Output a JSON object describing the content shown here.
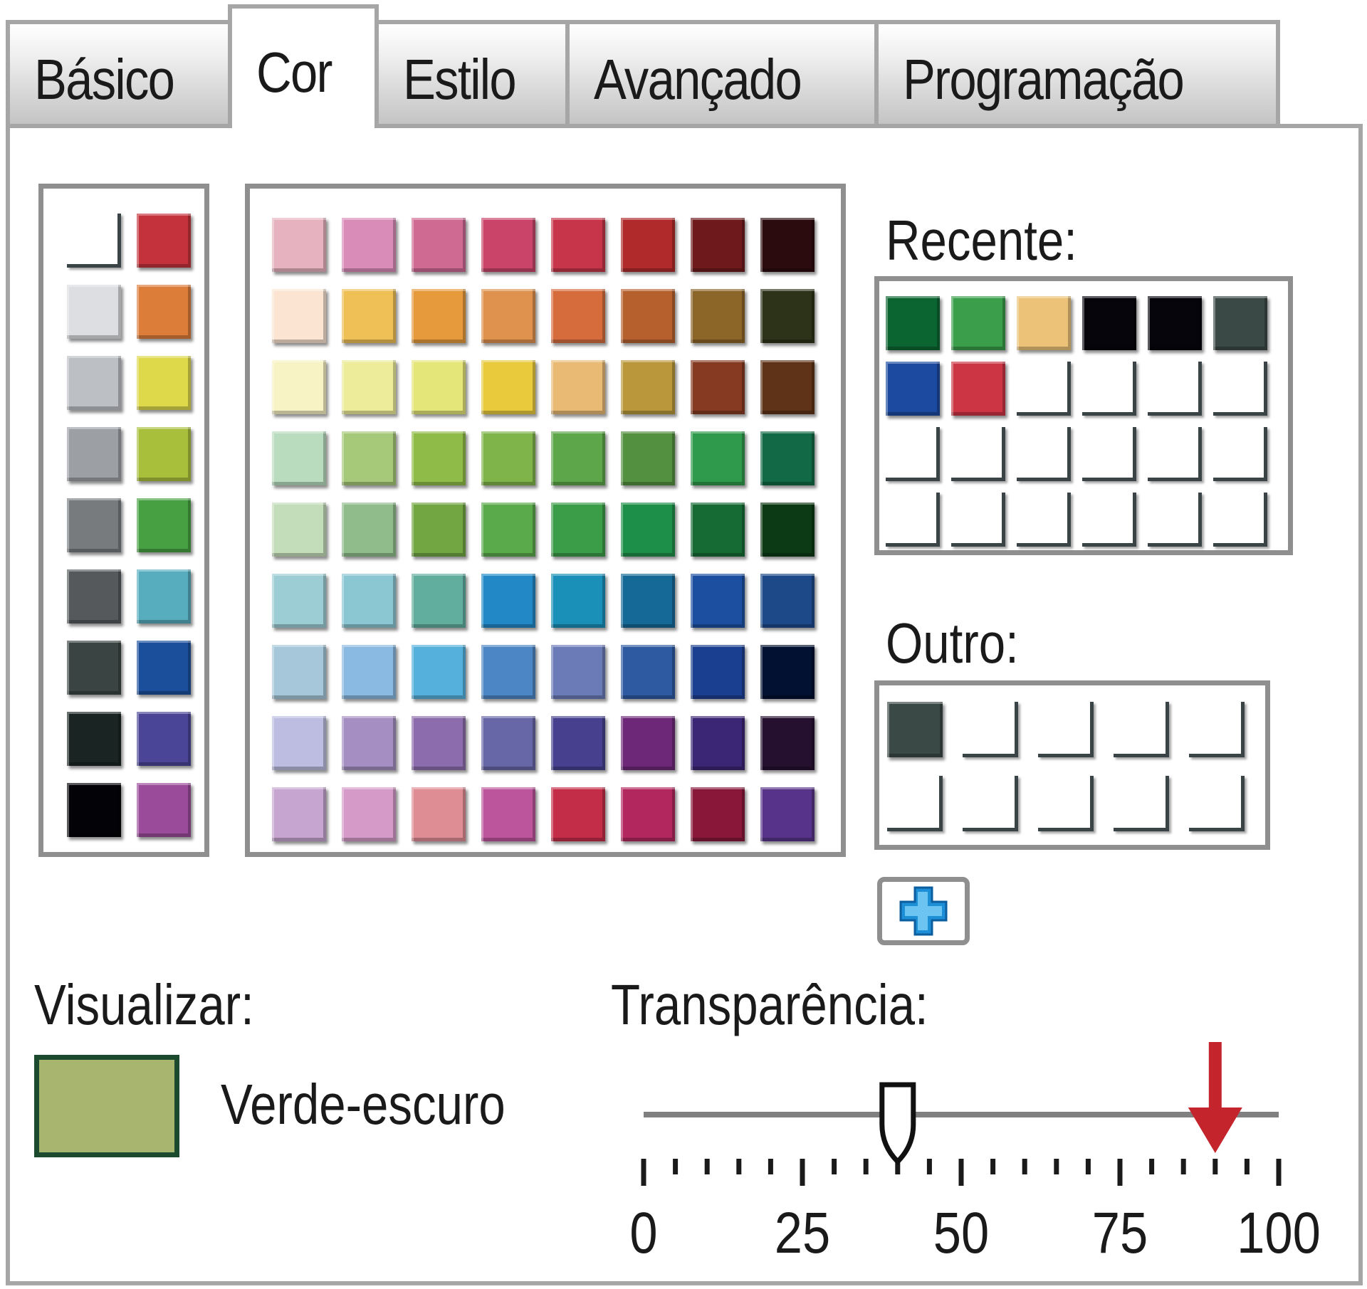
{
  "tabs": [
    {
      "label": "Básico",
      "active": false
    },
    {
      "label": "Cor",
      "active": true
    },
    {
      "label": "Estilo",
      "active": false
    },
    {
      "label": "Avançado",
      "active": false
    },
    {
      "label": "Programação",
      "active": false
    }
  ],
  "basic_palette": {
    "col1": [
      null,
      "#dcdee1",
      "#bcbfc3",
      "#9c9fa3",
      "#777b7e",
      "#55595b",
      "#3a4443",
      "#1a2423",
      "#030307"
    ],
    "col2": [
      "#c4333b",
      "#dc7d3a",
      "#ddd94b",
      "#a8bf3b",
      "#47a142",
      "#57acbd",
      "#1b4f9b",
      "#4a4596",
      "#9a4b9a"
    ]
  },
  "main_palette": [
    [
      "#e6b2bf",
      "#d98cb8",
      "#cf6a93",
      "#c94468",
      "#c63549",
      "#b02a2b",
      "#6e1a1d",
      "#2b0b0e"
    ],
    [
      "#fbe5d2",
      "#eec056",
      "#e69a3b",
      "#df914e",
      "#d66c3c",
      "#b6612d",
      "#8c6528",
      "#2d3318"
    ],
    [
      "#f8f3c4",
      "#ecec9a",
      "#e5e679",
      "#e9ca3c",
      "#e9ba73",
      "#b9973a",
      "#863a21",
      "#5e3317"
    ],
    [
      "#b8dcbd",
      "#a6c979",
      "#8fbc49",
      "#7fb44a",
      "#5da649",
      "#53903f",
      "#2f9a4c",
      "#116a45"
    ],
    [
      "#c3dcb9",
      "#8fbc8a",
      "#71a643",
      "#5aaa4c",
      "#3c9d48",
      "#1e8f48",
      "#166b35",
      "#0b3a15"
    ],
    [
      "#9ccdd4",
      "#8bc6d3",
      "#61ae9e",
      "#2289c6",
      "#1a8fb7",
      "#146996",
      "#1d4fa0",
      "#1d4989"
    ],
    [
      "#a6c7da",
      "#8ab9e1",
      "#55b0db",
      "#4c86c4",
      "#6a7bb8",
      "#2e5aa2",
      "#1b3f90",
      "#021131"
    ],
    [
      "#bcbde0",
      "#a58ec1",
      "#8c6cac",
      "#6766a7",
      "#46408f",
      "#6d2878",
      "#3b2575",
      "#26102f"
    ],
    [
      "#c6a5d0",
      "#d59ac8",
      "#df8d95",
      "#bd559d",
      "#c42d48",
      "#b2275e",
      "#88173a",
      "#573489"
    ]
  ],
  "recent": {
    "label": "Recente:",
    "colors": [
      "#0b6530",
      "#3a9e4a",
      "#ecc278",
      "#05050b",
      "#05050b",
      "#3a4846",
      "#1c4aa0",
      "#cb3544"
    ]
  },
  "other": {
    "label": "Outro:",
    "colors": [
      "#3a4846"
    ]
  },
  "add_button": {
    "icon": "plus-icon"
  },
  "preview": {
    "label": "Visualizar:",
    "color_name": "Verde-escuro",
    "color": "#a8b56f",
    "border_color": "#1c4a2e"
  },
  "transparency": {
    "label": "Transparência:",
    "ticks": [
      "0",
      "25",
      "50",
      "75",
      "100"
    ],
    "value": 40,
    "marker_value": 90,
    "marker_color": "#c4242b"
  }
}
